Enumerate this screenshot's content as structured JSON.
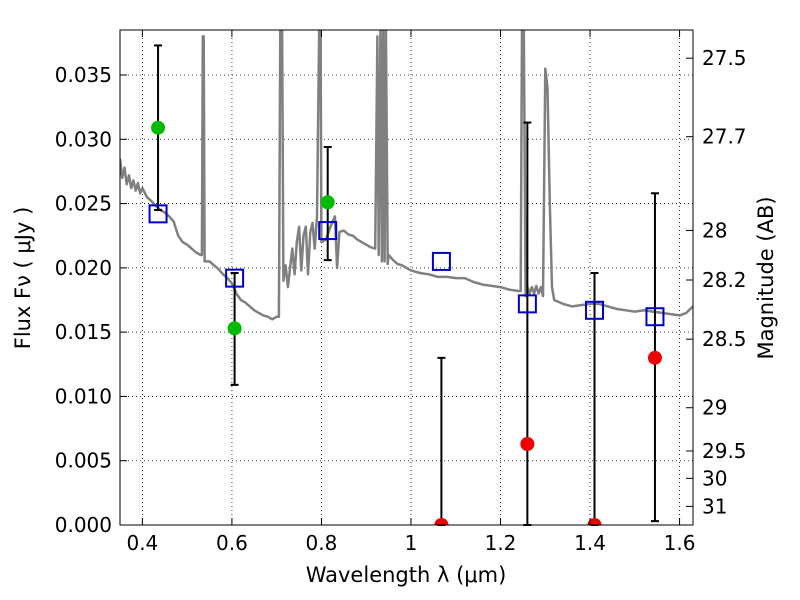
{
  "chart_data": {
    "type": "scatter",
    "title": "",
    "xlabel": "Wavelength  λ (μm)",
    "ylabel": "Flux  Fν  ( μJy )",
    "y2label": "Magnitude (AB)",
    "xlim": [
      0.35,
      1.63
    ],
    "ylim": [
      0.0,
      0.0385
    ],
    "grid": true,
    "x_ticks": [
      {
        "value": 0.4,
        "label": "0.4"
      },
      {
        "value": 0.6,
        "label": "0.6"
      },
      {
        "value": 0.8,
        "label": "0.8"
      },
      {
        "value": 1.0,
        "label": "1"
      },
      {
        "value": 1.2,
        "label": "1.2"
      },
      {
        "value": 1.4,
        "label": "1.4"
      },
      {
        "value": 1.6,
        "label": "1.6"
      }
    ],
    "y_ticks": [
      {
        "value": 0.0,
        "label": "0.000"
      },
      {
        "value": 0.005,
        "label": "0.005"
      },
      {
        "value": 0.01,
        "label": "0.010"
      },
      {
        "value": 0.015,
        "label": "0.015"
      },
      {
        "value": 0.02,
        "label": "0.020"
      },
      {
        "value": 0.025,
        "label": "0.025"
      },
      {
        "value": 0.03,
        "label": "0.030"
      },
      {
        "value": 0.035,
        "label": "0.035"
      }
    ],
    "y2_ticks": [
      {
        "mag": 27.5,
        "label": "27.5"
      },
      {
        "mag": 27.7,
        "label": "27.7"
      },
      {
        "mag": 28.0,
        "label": "28"
      },
      {
        "mag": 28.2,
        "label": "28.2"
      },
      {
        "mag": 28.5,
        "label": "28.5"
      },
      {
        "mag": 29.0,
        "label": "29"
      },
      {
        "mag": 29.5,
        "label": "29.5"
      },
      {
        "mag": 30.0,
        "label": "30"
      },
      {
        "mag": 31.0,
        "label": "31"
      }
    ],
    "model_sed": {
      "color": "#808080",
      "points": [
        [
          0.35,
          0.0285
        ],
        [
          0.355,
          0.027
        ],
        [
          0.36,
          0.0278
        ],
        [
          0.365,
          0.0265
        ],
        [
          0.37,
          0.0272
        ],
        [
          0.375,
          0.0262
        ],
        [
          0.38,
          0.0268
        ],
        [
          0.385,
          0.026
        ],
        [
          0.39,
          0.0266
        ],
        [
          0.395,
          0.0258
        ],
        [
          0.4,
          0.0262
        ],
        [
          0.41,
          0.0255
        ],
        [
          0.42,
          0.0252
        ],
        [
          0.43,
          0.0248
        ],
        [
          0.44,
          0.0245
        ],
        [
          0.45,
          0.0243
        ],
        [
          0.46,
          0.024
        ],
        [
          0.47,
          0.0236
        ],
        [
          0.48,
          0.0225
        ],
        [
          0.49,
          0.022
        ],
        [
          0.5,
          0.0218
        ],
        [
          0.51,
          0.0215
        ],
        [
          0.52,
          0.0212
        ],
        [
          0.53,
          0.021
        ],
        [
          0.533,
          0.021
        ],
        [
          0.535,
          0.038
        ],
        [
          0.537,
          0.038
        ],
        [
          0.539,
          0.0205
        ],
        [
          0.55,
          0.0205
        ],
        [
          0.56,
          0.0202
        ],
        [
          0.57,
          0.0199
        ],
        [
          0.58,
          0.0195
        ],
        [
          0.59,
          0.0192
        ],
        [
          0.6,
          0.0188
        ],
        [
          0.61,
          0.018
        ],
        [
          0.62,
          0.0175
        ],
        [
          0.63,
          0.0173
        ],
        [
          0.64,
          0.017
        ],
        [
          0.65,
          0.0167
        ],
        [
          0.66,
          0.0165
        ],
        [
          0.67,
          0.0163
        ],
        [
          0.68,
          0.0162
        ],
        [
          0.69,
          0.016
        ],
        [
          0.7,
          0.0162
        ],
        [
          0.705,
          0.0162
        ],
        [
          0.708,
          0.0388
        ],
        [
          0.712,
          0.0388
        ],
        [
          0.715,
          0.019
        ],
        [
          0.72,
          0.0202
        ],
        [
          0.725,
          0.0185
        ],
        [
          0.73,
          0.02
        ],
        [
          0.735,
          0.0215
        ],
        [
          0.74,
          0.0195
        ],
        [
          0.745,
          0.022
        ],
        [
          0.75,
          0.0232
        ],
        [
          0.755,
          0.0198
        ],
        [
          0.76,
          0.0225
        ],
        [
          0.765,
          0.0232
        ],
        [
          0.77,
          0.0195
        ],
        [
          0.775,
          0.0228
        ],
        [
          0.78,
          0.0235
        ],
        [
          0.785,
          0.0215
        ],
        [
          0.79,
          0.024
        ],
        [
          0.795,
          0.0388
        ],
        [
          0.798,
          0.0388
        ],
        [
          0.8,
          0.022
        ],
        [
          0.81,
          0.0222
        ],
        [
          0.82,
          0.0232
        ],
        [
          0.83,
          0.024
        ],
        [
          0.835,
          0.02
        ],
        [
          0.84,
          0.0228
        ],
        [
          0.85,
          0.0229
        ],
        [
          0.86,
          0.0226
        ],
        [
          0.87,
          0.0225
        ],
        [
          0.88,
          0.0222
        ],
        [
          0.89,
          0.022
        ],
        [
          0.9,
          0.0218
        ],
        [
          0.91,
          0.0216
        ],
        [
          0.92,
          0.0215
        ],
        [
          0.925,
          0.038
        ],
        [
          0.928,
          0.021
        ],
        [
          0.932,
          0.0388
        ],
        [
          0.935,
          0.0205
        ],
        [
          0.938,
          0.0388
        ],
        [
          0.941,
          0.0205
        ],
        [
          0.944,
          0.0388
        ],
        [
          0.948,
          0.0203
        ],
        [
          0.95,
          0.021
        ],
        [
          0.96,
          0.0206
        ],
        [
          0.97,
          0.0203
        ],
        [
          0.98,
          0.0202
        ],
        [
          0.99,
          0.02
        ],
        [
          1.0,
          0.0198
        ],
        [
          1.02,
          0.0196
        ],
        [
          1.04,
          0.0195
        ],
        [
          1.06,
          0.0193
        ],
        [
          1.08,
          0.0193
        ],
        [
          1.1,
          0.0192
        ],
        [
          1.12,
          0.0192
        ],
        [
          1.14,
          0.0189
        ],
        [
          1.16,
          0.0187
        ],
        [
          1.18,
          0.0186
        ],
        [
          1.2,
          0.0185
        ],
        [
          1.22,
          0.0183
        ],
        [
          1.24,
          0.0182
        ],
        [
          1.245,
          0.0182
        ],
        [
          1.248,
          0.0388
        ],
        [
          1.252,
          0.0388
        ],
        [
          1.256,
          0.0178
        ],
        [
          1.26,
          0.0185
        ],
        [
          1.265,
          0.018
        ],
        [
          1.27,
          0.0185
        ],
        [
          1.275,
          0.018
        ],
        [
          1.28,
          0.0186
        ],
        [
          1.285,
          0.018
        ],
        [
          1.29,
          0.0185
        ],
        [
          1.295,
          0.0178
        ],
        [
          1.3,
          0.0355
        ],
        [
          1.305,
          0.034
        ],
        [
          1.31,
          0.025
        ],
        [
          1.315,
          0.0185
        ],
        [
          1.32,
          0.0175
        ],
        [
          1.34,
          0.0172
        ],
        [
          1.36,
          0.017
        ],
        [
          1.38,
          0.0171
        ],
        [
          1.4,
          0.0172
        ],
        [
          1.42,
          0.0172
        ],
        [
          1.44,
          0.017
        ],
        [
          1.46,
          0.0168
        ],
        [
          1.48,
          0.0167
        ],
        [
          1.5,
          0.0166
        ],
        [
          1.52,
          0.0167
        ],
        [
          1.54,
          0.0166
        ],
        [
          1.56,
          0.0165
        ],
        [
          1.58,
          0.0164
        ],
        [
          1.6,
          0.0163
        ],
        [
          1.615,
          0.0165
        ],
        [
          1.63,
          0.017
        ]
      ]
    },
    "model_bands": {
      "name": "model photometry",
      "marker": "open-square",
      "color": "#0000cc",
      "points": [
        {
          "x": 0.435,
          "y": 0.0242
        },
        {
          "x": 0.606,
          "y": 0.0192
        },
        {
          "x": 0.814,
          "y": 0.0229
        },
        {
          "x": 1.068,
          "y": 0.0205
        },
        {
          "x": 1.26,
          "y": 0.0172
        },
        {
          "x": 1.41,
          "y": 0.0167
        },
        {
          "x": 1.545,
          "y": 0.0162
        }
      ]
    },
    "observed": {
      "marker": "filled-circle",
      "points": [
        {
          "x": 0.435,
          "y": 0.0309,
          "err_low": 0.0245,
          "err_high": 0.0373,
          "color": "#00bb00"
        },
        {
          "x": 0.606,
          "y": 0.0153,
          "err_low": 0.0109,
          "err_high": 0.0196,
          "color": "#00bb00"
        },
        {
          "x": 0.814,
          "y": 0.0251,
          "err_low": 0.0206,
          "err_high": 0.0294,
          "color": "#00bb00"
        },
        {
          "x": 1.068,
          "y": 0.0,
          "err_low": 0.0,
          "err_high": 0.013,
          "color": "#ee0000"
        },
        {
          "x": 1.26,
          "y": 0.0063,
          "err_low": 0.0,
          "err_high": 0.0313,
          "color": "#ee0000"
        },
        {
          "x": 1.41,
          "y": 0.0,
          "err_low": 0.0,
          "err_high": 0.0196,
          "color": "#ee0000"
        },
        {
          "x": 1.545,
          "y": 0.013,
          "err_low": 0.0003,
          "err_high": 0.0258,
          "color": "#ee0000"
        }
      ]
    }
  }
}
